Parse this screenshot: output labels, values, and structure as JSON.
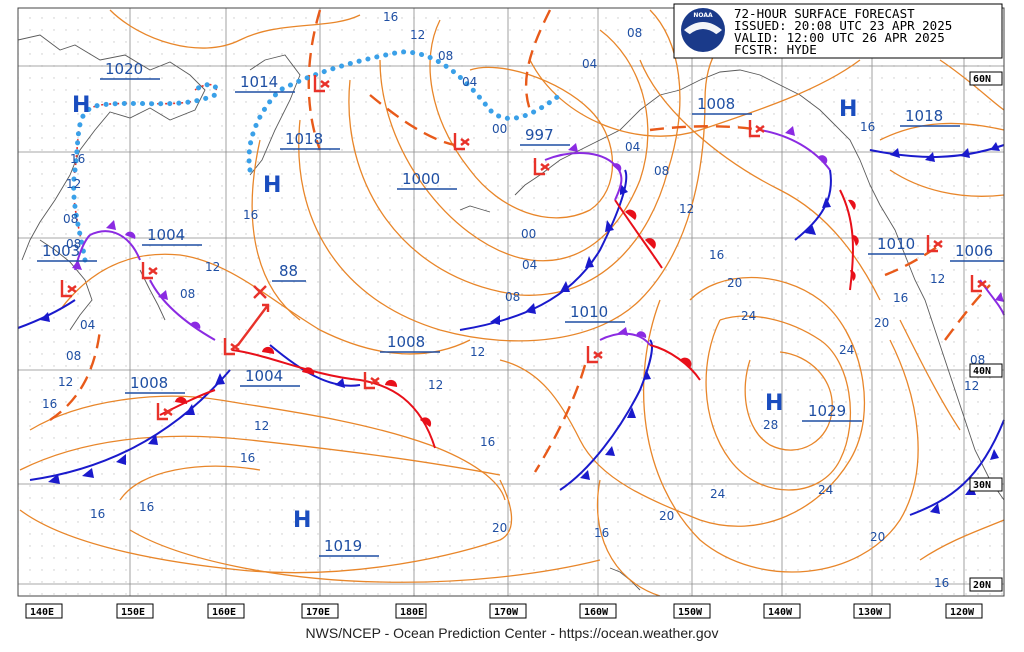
{
  "header": {
    "line1": "72-HOUR SURFACE FORECAST",
    "line2": "ISSUED: 20:08 UTC 23 APR 2025",
    "line3": "VALID:  12:00 UTC 26 APR 2025",
    "line4": "FCSTR:  HYDE",
    "logo_text": "NOAA"
  },
  "footer": "NWS/NCEP - Ocean Prediction Center - https://ocean.weather.gov",
  "longitude_labels": [
    "140E",
    "150E",
    "160E",
    "170E",
    "180E",
    "170W",
    "160W",
    "150W",
    "140W",
    "130W",
    "120W"
  ],
  "latitude_labels": [
    "60N",
    "40N",
    "30N",
    "20N"
  ],
  "pressure_centers": [
    {
      "type": "H",
      "value": "1020"
    },
    {
      "type": "L",
      "value": "1014"
    },
    {
      "type": "H",
      "value": "1018"
    },
    {
      "type": "L",
      "value": "1000"
    },
    {
      "type": "L",
      "value": "997"
    },
    {
      "type": "L",
      "value": "1008"
    },
    {
      "type": "H",
      "value": "1018"
    },
    {
      "type": "L",
      "value": "1003"
    },
    {
      "type": "L",
      "value": "1004"
    },
    {
      "type": "L",
      "value": "88"
    },
    {
      "type": "L",
      "value": "1008"
    },
    {
      "type": "L",
      "value": "1004"
    },
    {
      "type": "L",
      "value": "1008"
    },
    {
      "type": "L",
      "value": "1010"
    },
    {
      "type": "L",
      "value": "1010"
    },
    {
      "type": "L",
      "value": "1006"
    },
    {
      "type": "H",
      "value": "1029"
    },
    {
      "type": "H",
      "value": "1019"
    }
  ],
  "isobar_labels": [
    "16",
    "12",
    "08",
    "04",
    "00",
    "04",
    "08",
    "16",
    "12",
    "08",
    "16",
    "12",
    "08",
    "04",
    "08",
    "12",
    "16",
    "16",
    "16",
    "12",
    "04",
    "08",
    "12",
    "16",
    "20",
    "24",
    "20",
    "24",
    "16",
    "12",
    "08",
    "12",
    "16",
    "20",
    "24",
    "24",
    "20",
    "20",
    "16",
    "28",
    "16",
    "00",
    "04",
    "08",
    "12",
    "16",
    "16",
    "12",
    "08"
  ],
  "colors": {
    "isobar": "#e8862a",
    "cold_front": "#1a1acc",
    "warm_front": "#e8101a",
    "occluded_front": "#8b2be2",
    "trough": "#e85a1a",
    "ice_edge": "#3aa0e8",
    "label": "#1f4fa3",
    "grid": "#9a9a9a",
    "coast": "#555555"
  }
}
